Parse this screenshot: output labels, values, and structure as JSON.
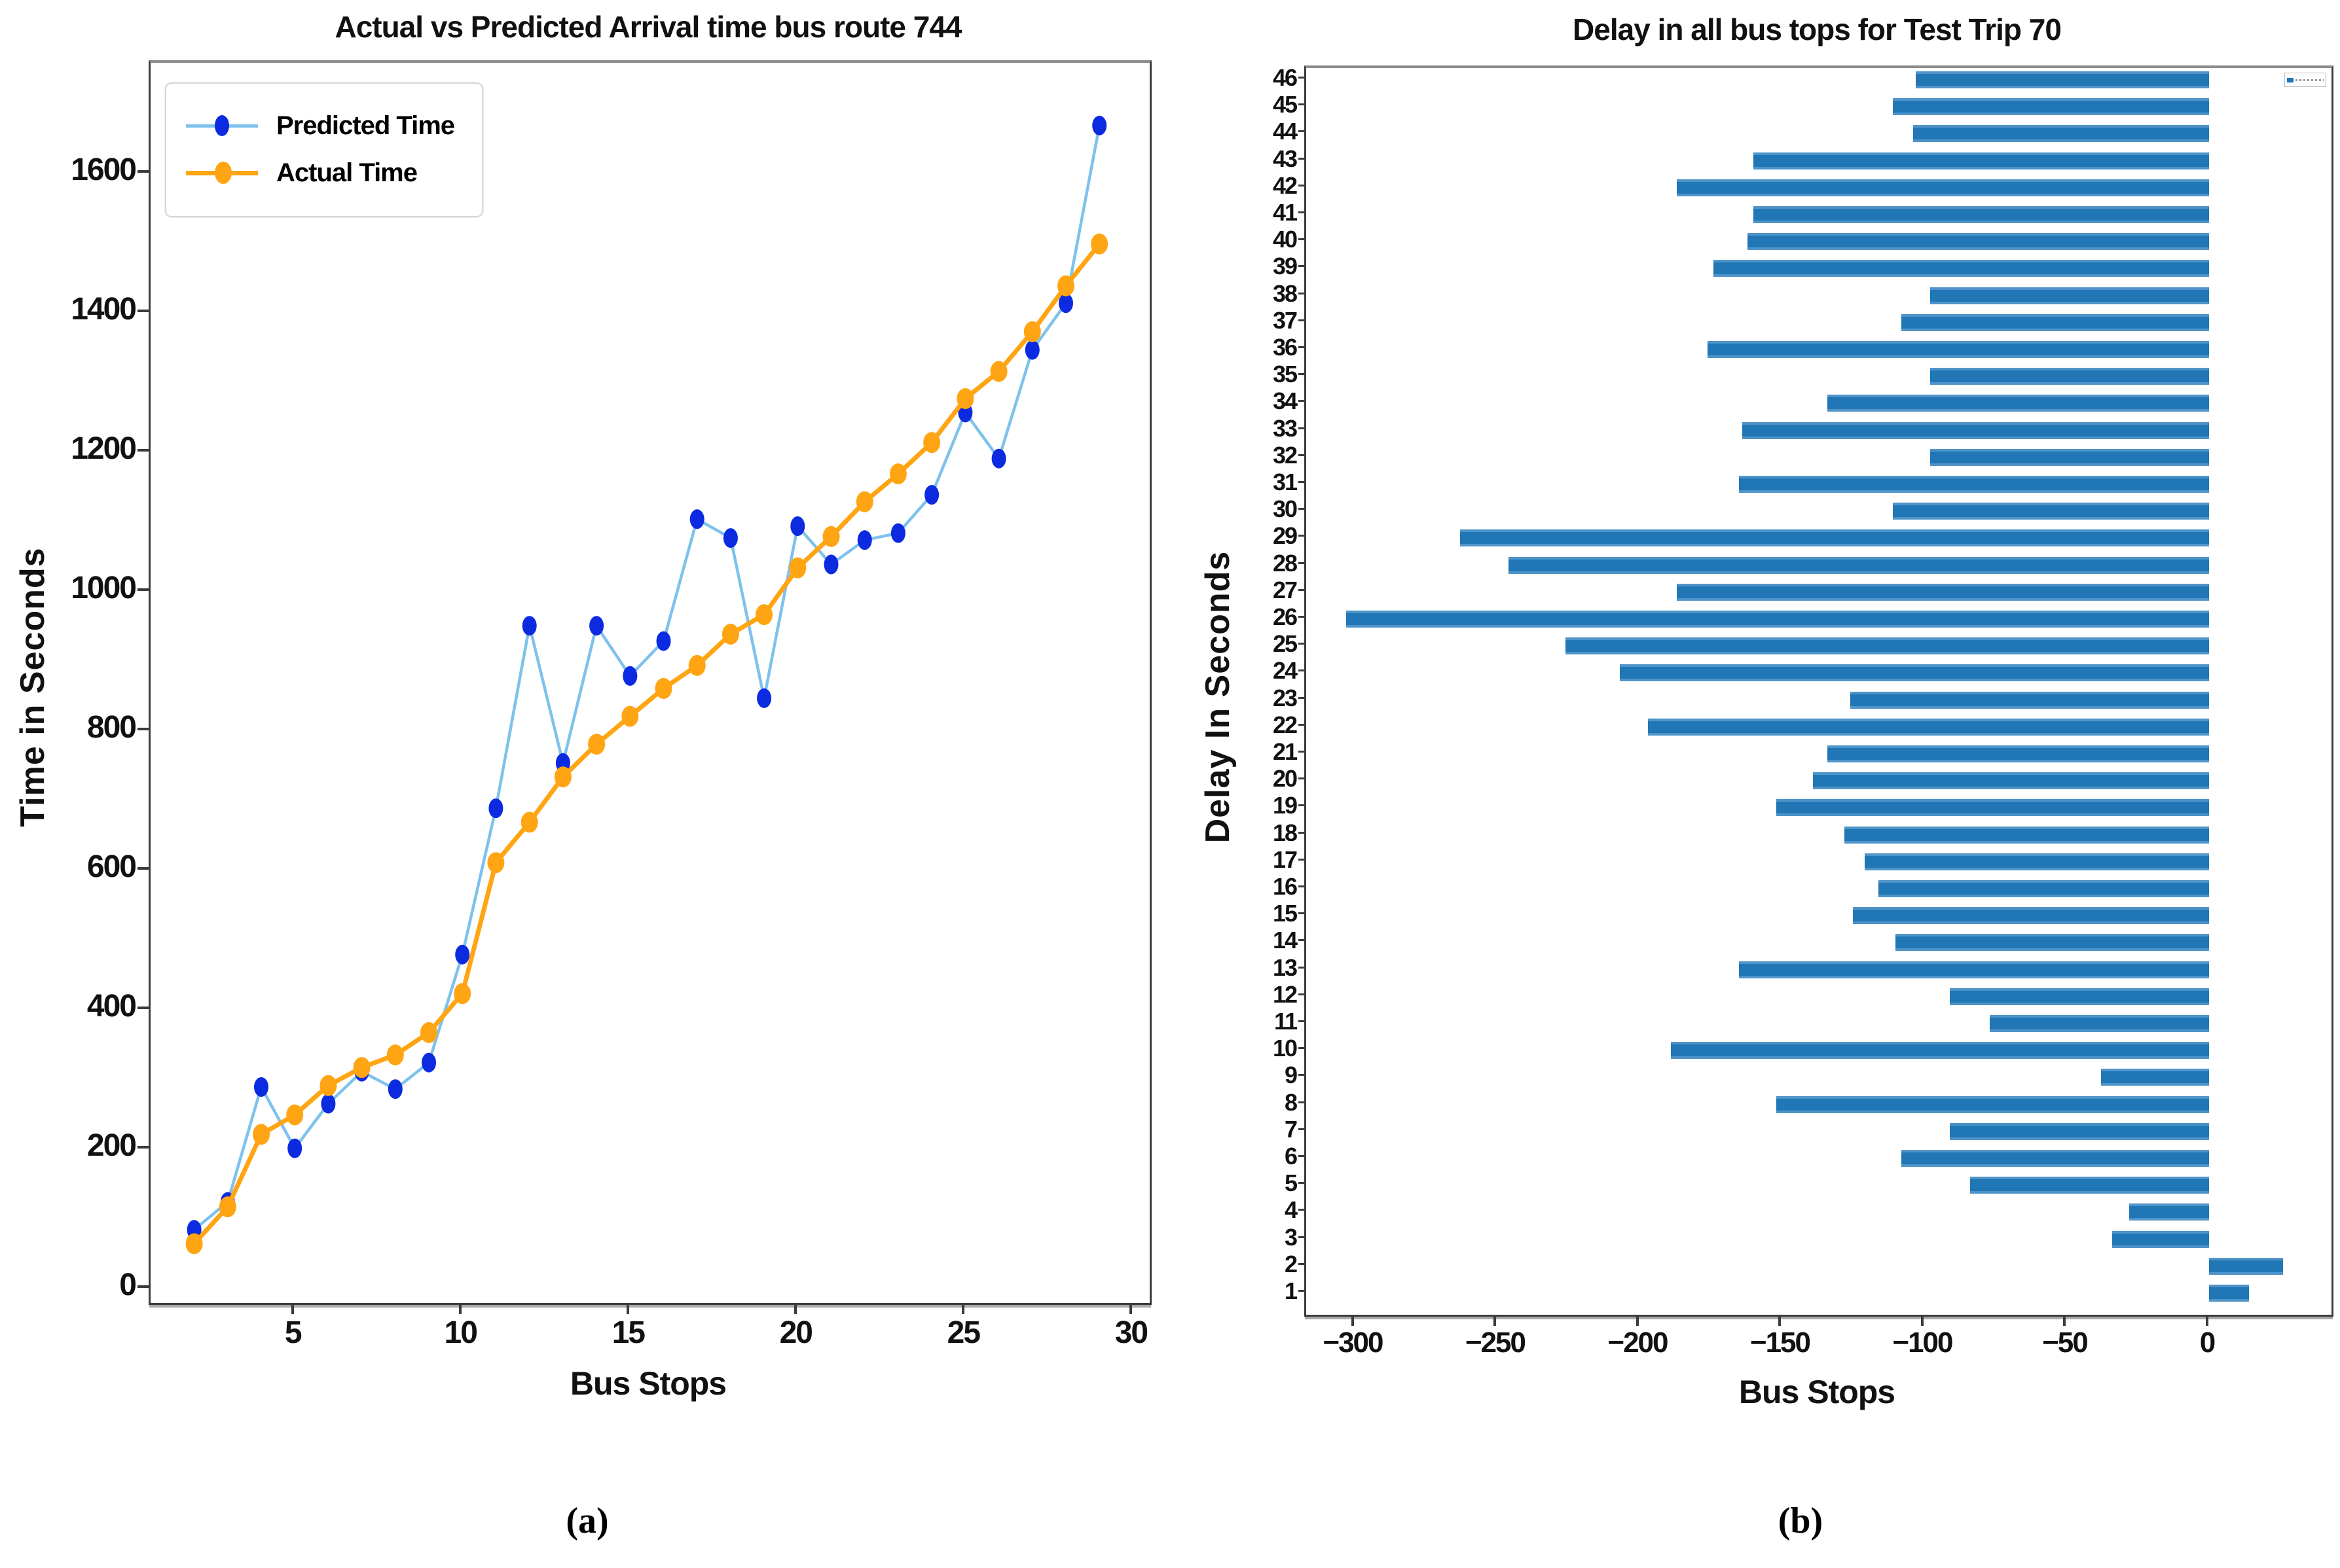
{
  "figure": {
    "caption_a": "(a)",
    "caption_b": "(b)"
  },
  "chart_data": [
    {
      "id": "arrival-comparison",
      "type": "line",
      "title": "Actual vs Predicted Arrival time bus route 744",
      "xlabel": "Bus Stops",
      "ylabel": "Time in Seconds",
      "xlim": [
        0.7,
        30.5
      ],
      "ylim": [
        -20,
        1760
      ],
      "xticks": [
        5,
        10,
        15,
        20,
        25,
        30
      ],
      "yticks": [
        0,
        200,
        400,
        600,
        800,
        1000,
        1200,
        1400,
        1600
      ],
      "grid": false,
      "legend_position": "upper-left",
      "x": [
        2,
        3,
        4,
        5,
        6,
        7,
        8,
        9,
        10,
        11,
        12,
        13,
        14,
        15,
        16,
        17,
        18,
        19,
        20,
        21,
        22,
        23,
        24,
        25,
        26,
        27,
        28,
        29
      ],
      "series": [
        {
          "name": "Predicted Time",
          "line_color": "#7ec2ec",
          "marker_color": "#0c2be0",
          "values": [
            85,
            125,
            290,
            202,
            266,
            312,
            287,
            325,
            480,
            690,
            952,
            755,
            952,
            880,
            930,
            1105,
            1078,
            848,
            1095,
            1040,
            1075,
            1085,
            1140,
            1258,
            1192,
            1348,
            1415,
            1670
          ]
        },
        {
          "name": "Actual Time",
          "line_color": "#ffa513",
          "marker_color": "#ffa513",
          "values": [
            65,
            118,
            222,
            250,
            292,
            318,
            336,
            368,
            424,
            612,
            670,
            735,
            782,
            822,
            862,
            895,
            940,
            968,
            1035,
            1080,
            1130,
            1170,
            1215,
            1278,
            1317,
            1374,
            1440,
            1500
          ]
        }
      ]
    },
    {
      "id": "delay-per-stop",
      "type": "bar",
      "orientation": "horizontal",
      "title": "Delay in all bus tops for Test Trip 70",
      "xlabel": "Bus Stops",
      "ylabel": "Delay In Seconds",
      "xlim": [
        -317,
        43
      ],
      "xticks": [
        -300,
        -250,
        -200,
        -150,
        -100,
        -50,
        0
      ],
      "grid": false,
      "bar_color": "#2176b5",
      "bar_edge_color": "#4f94c9",
      "inset_legend_swatch": "#2176b5",
      "categories": [
        46,
        45,
        44,
        43,
        42,
        41,
        40,
        39,
        38,
        37,
        36,
        35,
        34,
        33,
        32,
        31,
        30,
        29,
        28,
        27,
        26,
        25,
        24,
        23,
        22,
        21,
        20,
        19,
        18,
        17,
        16,
        15,
        14,
        13,
        12,
        11,
        10,
        9,
        8,
        7,
        6,
        5,
        4,
        3,
        2,
        1
      ],
      "values": [
        -103,
        -111,
        -104,
        -160,
        -187,
        -160,
        -162,
        -174,
        -98,
        -108,
        -176,
        -98,
        -134,
        -164,
        -98,
        -165,
        -111,
        -263,
        -246,
        -187,
        -303,
        -226,
        -207,
        -126,
        -197,
        -134,
        -139,
        -152,
        -128,
        -121,
        -116,
        -125,
        -110,
        -165,
        -91,
        -77,
        -189,
        -38,
        -152,
        -91,
        -108,
        -84,
        -28,
        -34,
        26,
        14
      ]
    }
  ]
}
